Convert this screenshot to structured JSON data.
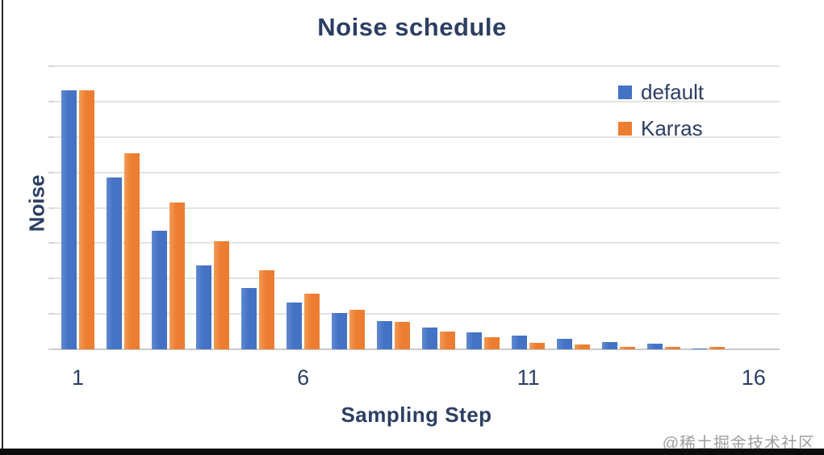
{
  "page": {
    "watermark": "@稀土掘金技术社区"
  },
  "chart_data": {
    "type": "bar",
    "title": "Noise schedule",
    "xlabel": "Sampling Step",
    "ylabel": "Noise",
    "categories": [
      1,
      2,
      3,
      4,
      5,
      6,
      7,
      8,
      9,
      10,
      11,
      12,
      13,
      14,
      15,
      16
    ],
    "x_ticks_shown_at": [
      1,
      6,
      11,
      16
    ],
    "series": [
      {
        "name": "default",
        "color": "#4472C4",
        "values": [
          7.32,
          4.85,
          3.34,
          2.37,
          1.73,
          1.32,
          1.02,
          0.8,
          0.61,
          0.49,
          0.38,
          0.3,
          0.21,
          0.15,
          0.02,
          0
        ]
      },
      {
        "name": "Karras",
        "color": "#ED7D31",
        "values": [
          7.32,
          5.55,
          4.14,
          3.06,
          2.23,
          1.57,
          1.11,
          0.77,
          0.51,
          0.35,
          0.19,
          0.13,
          0.08,
          0.07,
          0.08,
          0
        ]
      }
    ],
    "ylim": [
      0,
      8
    ],
    "gridline_interval": 1,
    "grid": true,
    "y_tick_labels_shown": false,
    "legend_position": "top-right",
    "note": "y-axis shows no numeric labels; values estimated in gridline units (8 intervals from baseline to top gridline)"
  },
  "colors": {
    "text": "#2C3E63",
    "grid": "#E3E3E3",
    "axis_baseline": "#C9C9C9",
    "frame": "#1A1A1A",
    "watermark": "#9E9E9E",
    "background": "#FFFFFF"
  }
}
